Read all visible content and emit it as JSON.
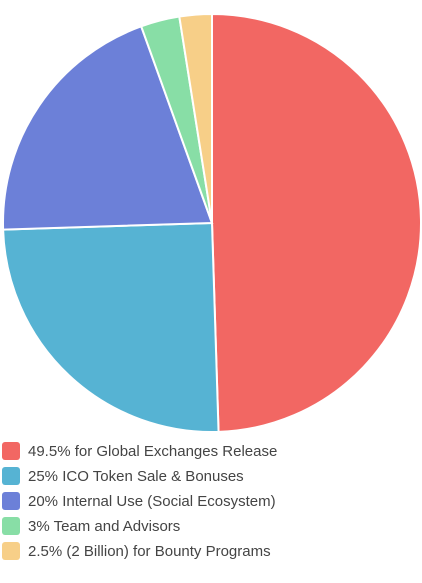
{
  "chart_data": {
    "type": "pie",
    "categories": [
      "49.5% for Global Exchanges Release",
      "25% ICO Token Sale & Bonuses",
      "20% Internal Use (Social Ecosystem)",
      "3% Team and Advisors",
      "2.5% (2 Billion) for Bounty Programs"
    ],
    "values": [
      49.5,
      25,
      20,
      3,
      2.5
    ],
    "colors": [
      "#f26763",
      "#56b3d3",
      "#6c80d8",
      "#88dea6",
      "#f7cf88"
    ]
  }
}
